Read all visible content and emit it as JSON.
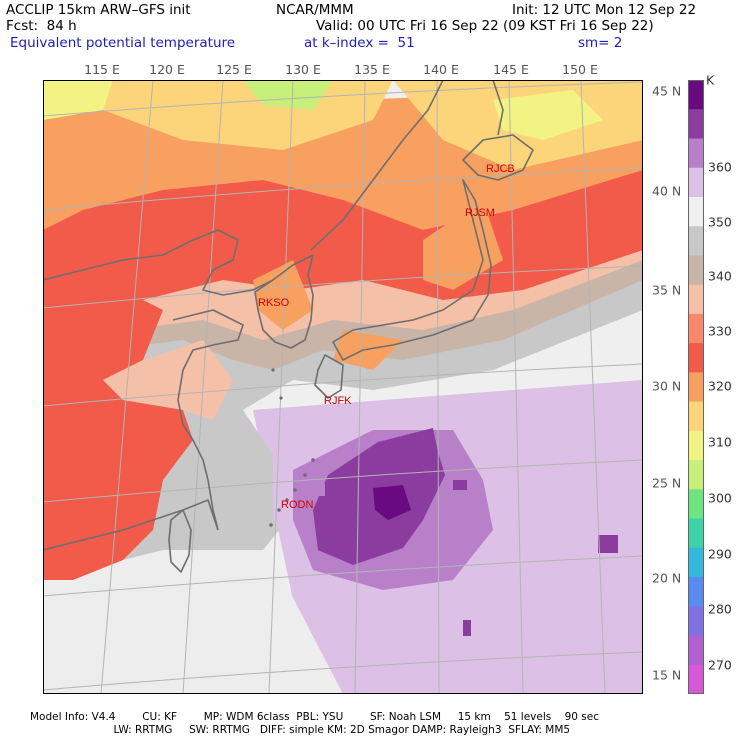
{
  "header": {
    "model": "ACCLIP 15km ARW–GFS init",
    "center": "NCAR/MMM",
    "init": "Init: 12 UTC Mon 12 Sep 22",
    "fcst": "Fcst:  84 h",
    "valid": "Valid: 00 UTC Fri 16 Sep 22 (09 KST Fri 16 Sep 22)",
    "field": "Equivalent potential temperature",
    "level": "at k–index =  51",
    "smooth": "sm= 2"
  },
  "axes": {
    "lon_labels": [
      "115 E",
      "120 E",
      "125 E",
      "130 E",
      "135 E",
      "140 E",
      "145 E",
      "150 E"
    ],
    "lat_labels": [
      "45 N",
      "40 N",
      "35 N",
      "30 N",
      "25 N",
      "20 N",
      "15 N"
    ]
  },
  "colorbar": {
    "unit": "K",
    "labels": [
      "360",
      "350",
      "340",
      "330",
      "320",
      "310",
      "300",
      "290",
      "280",
      "270"
    ],
    "colors": [
      "#6a0a80",
      "#8a3d9e",
      "#b880c8",
      "#ddc0e6",
      "#efefef",
      "#c8c8c8",
      "#c9b4a8",
      "#f4c0a8",
      "#f7886c",
      "#f25a4a",
      "#f7a060",
      "#fcd47a",
      "#f3f383",
      "#c6f07a",
      "#6ce580",
      "#3ad2a6",
      "#34b8dc",
      "#5a8cf0",
      "#8070e0",
      "#b060d0",
      "#d65ad8"
    ],
    "top_color": "#6a0a80"
  },
  "stations": [
    {
      "id": "RJCB",
      "name": "RJCB"
    },
    {
      "id": "RJSM",
      "name": "RJSM"
    },
    {
      "id": "RKSO",
      "name": "RKSO"
    },
    {
      "id": "RJFK",
      "name": "RJFK"
    },
    {
      "id": "RODN",
      "name": "RODN"
    }
  ],
  "footer": {
    "line1": "Model Info: V4.4        CU: KF        MP: WDM 6class  PBL: YSU        SF: Noah LSM     15 km    51 levels    90 sec",
    "line2": "                         LW: RRTMG     SW: RRTMG   DIFF: simple KM: 2D Smagor DAMP: Rayleigh3  SFLAY: MM5"
  }
}
